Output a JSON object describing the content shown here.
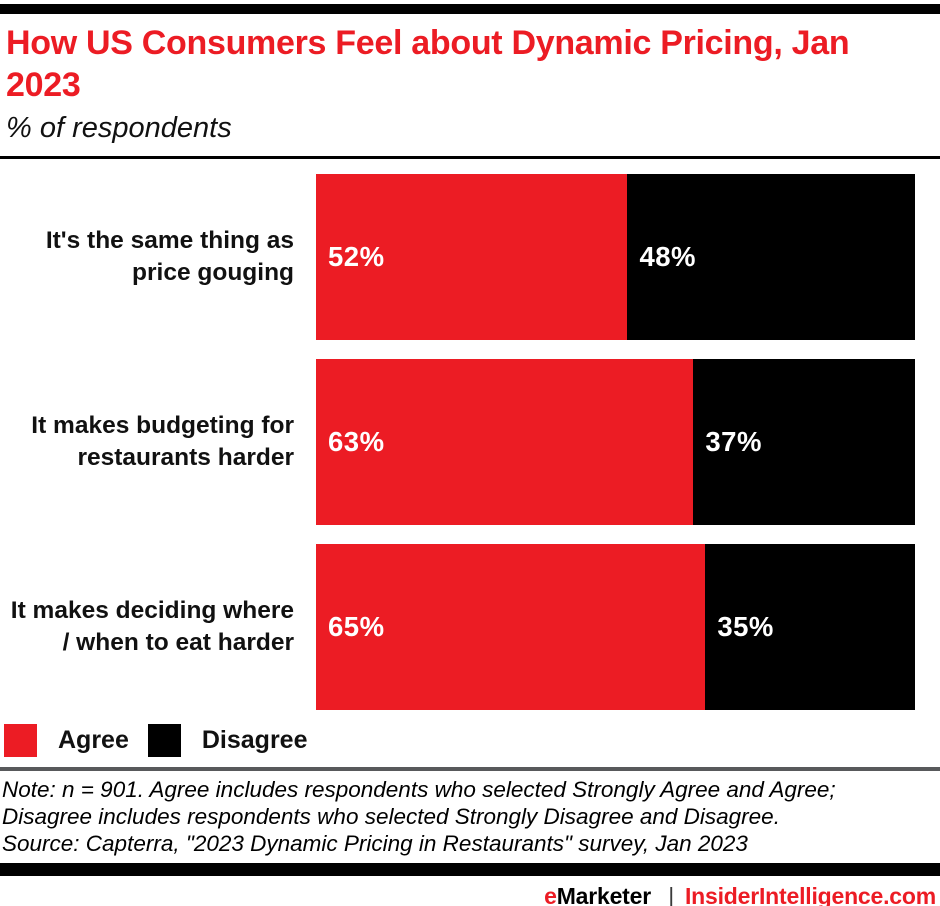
{
  "colors": {
    "agree_red": "#EC1C24",
    "disagree_black": "#000000",
    "rule_gray": "#58595B",
    "pipe_gray": "#3a3a3a"
  },
  "header": {
    "title_line1": "How US Consumers Feel about Dynamic Pricing, Jan",
    "title_line2": "2023",
    "subtitle": "% of respondents"
  },
  "legend": {
    "agree_label": "Agree",
    "disagree_label": "Disagree"
  },
  "notes": {
    "line1": "Note: n = 901. Agree includes respondents who selected Strongly Agree and Agree;",
    "line2": "Disagree includes respondents who selected Strongly Disagree and Disagree.",
    "line3": "Source: Capterra, \"2023 Dynamic Pricing in Restaurants\" survey, Jan 2023"
  },
  "footer": {
    "brand_e": "e",
    "brand_rest": "Marketer",
    "separator": "|",
    "site": "InsiderIntelligence.com"
  },
  "chart_data": {
    "type": "bar",
    "orientation": "horizontal-stacked",
    "title": "How US Consumers Feel about Dynamic Pricing, Jan 2023",
    "xlabel": "% of respondents",
    "xlim": [
      0,
      100
    ],
    "grid": false,
    "legend_position": "bottom-left",
    "categories": [
      "It's the same thing as price gouging",
      "It makes budgeting for restaurants harder",
      "It makes deciding where / when to eat harder"
    ],
    "series": [
      {
        "name": "Agree",
        "color": "#EC1C24",
        "values": [
          52,
          63,
          65
        ]
      },
      {
        "name": "Disagree",
        "color": "#000000",
        "values": [
          48,
          37,
          35
        ]
      }
    ],
    "rows": [
      {
        "label": "It's the same thing as\nprice gouging",
        "agree": 52,
        "agree_label": "52%",
        "disagree": 48,
        "disagree_label": "48%"
      },
      {
        "label": "It makes budgeting for\nrestaurants harder",
        "agree": 63,
        "agree_label": "63%",
        "disagree": 37,
        "disagree_label": "37%"
      },
      {
        "label": "It makes deciding where\n/ when to eat harder",
        "agree": 65,
        "agree_label": "65%",
        "disagree": 35,
        "disagree_label": "35%"
      }
    ]
  }
}
